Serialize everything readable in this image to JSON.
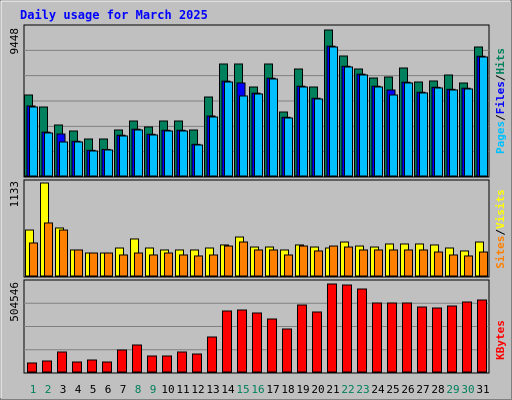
{
  "chart_data": [
    {
      "type": "bar",
      "title": "Daily usage for March 2025",
      "ylim": [
        0,
        9448
      ],
      "yticks": [
        9448
      ],
      "legend_separator": "/",
      "series": [
        {
          "name": "Pages",
          "color": "#00c0ff",
          "values": [
            4465,
            2783,
            2200,
            2200,
            1618,
            1682,
            2588,
            2977,
            2653,
            2912,
            2912,
            2006,
            3818,
            6083,
            5177,
            5306,
            6277,
            3753,
            5759,
            4983,
            8348,
            7053,
            6536,
            5759,
            5242,
            6018,
            5371,
            5694,
            5565,
            5630,
            7700
          ]
        },
        {
          "name": "Files",
          "color": "#0000ff",
          "values": [
            4530,
            2840,
            2718,
            2250,
            1660,
            1720,
            2640,
            3030,
            2700,
            2960,
            2960,
            2050,
            3882,
            6140,
            6018,
            5360,
            6330,
            3800,
            5810,
            5030,
            8400,
            7100,
            6590,
            5810,
            5565,
            6070,
            5420,
            5740,
            5610,
            5680,
            7750
          ]
        },
        {
          "name": "Hits",
          "color": "#00805c",
          "values": [
            5242,
            4465,
            3300,
            2912,
            2394,
            2394,
            2977,
            3559,
            3171,
            3559,
            3559,
            2977,
            5112,
            7248,
            7248,
            5759,
            7248,
            4141,
            6924,
            5759,
            9448,
            7765,
            6924,
            6342,
            6406,
            6989,
            6083,
            6148,
            6536,
            6018,
            8348
          ]
        }
      ]
    },
    {
      "type": "bar",
      "ylim": [
        0,
        1133
      ],
      "yticks": [
        1133
      ],
      "legend_separator": "/",
      "series": [
        {
          "name": "Sites",
          "color": "#ff8000",
          "values": [
            402,
            646,
            560,
            317,
            280,
            280,
            256,
            280,
            256,
            280,
            256,
            244,
            256,
            365,
            414,
            317,
            317,
            256,
            365,
            305,
            365,
            353,
            317,
            317,
            317,
            317,
            317,
            292,
            256,
            244,
            292
          ]
        },
        {
          "name": "Visits",
          "color": "#ffff00",
          "values": [
            560,
            1133,
            585,
            317,
            280,
            280,
            341,
            451,
            341,
            317,
            317,
            317,
            341,
            378,
            475,
            353,
            353,
            317,
            378,
            353,
            341,
            414,
            365,
            353,
            390,
            390,
            390,
            378,
            341,
            305,
            414
          ]
        }
      ]
    },
    {
      "type": "bar",
      "ylim": [
        0,
        504546
      ],
      "yticks": [
        504546
      ],
      "categories": [
        "1",
        "2",
        "3",
        "4",
        "5",
        "6",
        "7",
        "8",
        "9",
        "10",
        "11",
        "12",
        "13",
        "14",
        "15",
        "16",
        "17",
        "18",
        "19",
        "20",
        "21",
        "22",
        "23",
        "24",
        "25",
        "26",
        "27",
        "28",
        "29",
        "30",
        "31"
      ],
      "category_colors": [
        "#00805c",
        "#00805c",
        "#000000",
        "#000000",
        "#000000",
        "#000000",
        "#000000",
        "#00805c",
        "#00805c",
        "#000000",
        "#000000",
        "#000000",
        "#000000",
        "#000000",
        "#00805c",
        "#00805c",
        "#000000",
        "#000000",
        "#000000",
        "#000000",
        "#000000",
        "#00805c",
        "#00805c",
        "#000000",
        "#000000",
        "#000000",
        "#000000",
        "#000000",
        "#00805c",
        "#00805c",
        "#000000"
      ],
      "series": [
        {
          "name": "KBytes",
          "color": "#ff0000",
          "values": [
            51600,
            63063,
            114660,
            57330,
            68796,
            57330,
            126126,
            154791,
            91728,
            91728,
            114660,
            103194,
            200655,
            349713,
            355446,
            338247,
            303849,
            246519,
            384111,
            343980,
            504546,
            498771,
            475839,
            395577,
            395577,
            395577,
            372645,
            366912,
            378378,
            401310,
            412776
          ]
        }
      ]
    }
  ]
}
